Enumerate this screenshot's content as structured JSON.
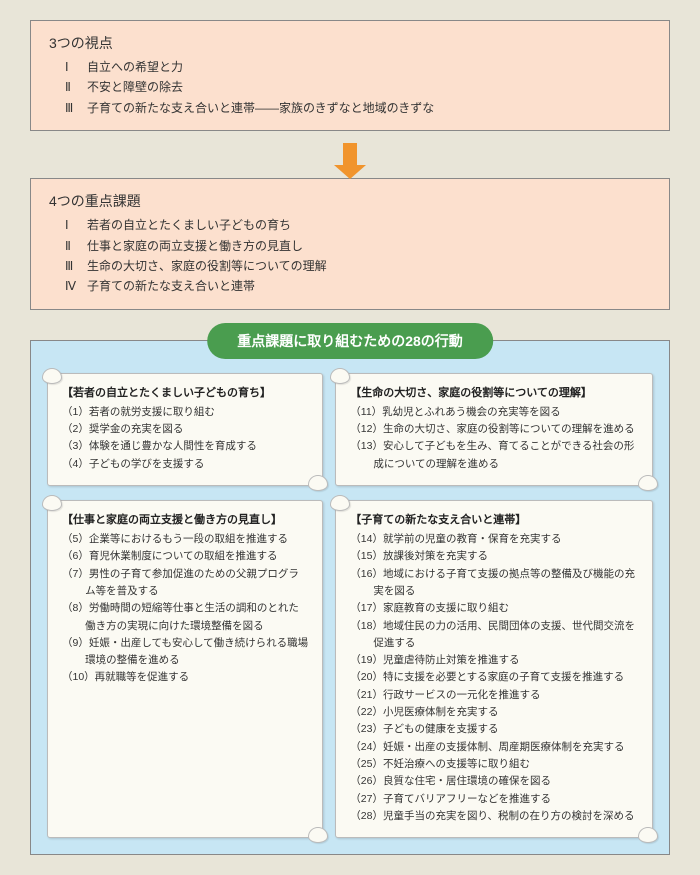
{
  "colors": {
    "page_bg": "#e8e5d8",
    "box_bg": "#fce0ce",
    "box_border": "#888888",
    "arrow": "#f1942c",
    "container_bg": "#c7e6f4",
    "pill_bg": "#4a9d4f",
    "pill_text": "#ffffff",
    "scroll_bg": "#fbfaf3",
    "scroll_border": "#bbbbbb",
    "text": "#333333"
  },
  "box1": {
    "title": "3つの視点",
    "items": [
      {
        "num": "Ⅰ",
        "text": "自立への希望と力"
      },
      {
        "num": "Ⅱ",
        "text": "不安と障壁の除去"
      },
      {
        "num": "Ⅲ",
        "text": "子育ての新たな支え合いと連帯――家族のきずなと地域のきずな"
      }
    ]
  },
  "box2": {
    "title": "4つの重点課題",
    "items": [
      {
        "num": "Ⅰ",
        "text": "若者の自立とたくましい子どもの育ち"
      },
      {
        "num": "Ⅱ",
        "text": "仕事と家庭の両立支援と働き方の見直し"
      },
      {
        "num": "Ⅲ",
        "text": "生命の大切さ、家庭の役割等についての理解"
      },
      {
        "num": "Ⅳ",
        "text": "子育ての新たな支え合いと連帯"
      }
    ]
  },
  "pill": "重点課題に取り組むための28の行動",
  "sections": {
    "a": {
      "title": "【若者の自立とたくましい子どもの育ち】",
      "items": [
        "（1）若者の就労支援に取り組む",
        "（2）奨学金の充実を図る",
        "（3）体験を通じ豊かな人間性を育成する",
        "（4）子どもの学びを支援する"
      ]
    },
    "b": {
      "title": "【生命の大切さ、家庭の役割等についての理解】",
      "items": [
        "（11）乳幼児とふれあう機会の充実等を図る",
        "（12）生命の大切さ、家庭の役割等についての理解を進める",
        "（13）安心して子どもを生み、育てることができる社会の形成についての理解を進める"
      ]
    },
    "c": {
      "title": "【仕事と家庭の両立支援と働き方の見直し】",
      "items": [
        "（5）企業等におけるもう一段の取組を推進する",
        "（6）育児休業制度についての取組を推進する",
        "（7）男性の子育て参加促進のための父親プログラム等を普及する",
        "（8）労働時間の短縮等仕事と生活の調和のとれた働き方の実現に向けた環境整備を図る",
        "（9）妊娠・出産しても安心して働き続けられる職場環境の整備を進める",
        "（10）再就職等を促進する"
      ]
    },
    "d": {
      "title": "【子育ての新たな支え合いと連帯】",
      "items": [
        "（14）就学前の児童の教育・保育を充実する",
        "（15）放課後対策を充実する",
        "（16）地域における子育て支援の拠点等の整備及び機能の充実を図る",
        "（17）家庭教育の支援に取り組む",
        "（18）地域住民の力の活用、民間団体の支援、世代間交流を促進する",
        "（19）児童虐待防止対策を推進する",
        "（20）特に支援を必要とする家庭の子育て支援を推進する",
        "（21）行政サービスの一元化を推進する",
        "（22）小児医療体制を充実する",
        "（23）子どもの健康を支援する",
        "（24）妊娠・出産の支援体制、周産期医療体制を充実する",
        "（25）不妊治療への支援等に取り組む",
        "（26）良質な住宅・居住環境の確保を図る",
        "（27）子育てバリアフリーなどを推進する",
        "（28）児童手当の充実を図り、税制の在り方の検討を深める"
      ]
    }
  }
}
